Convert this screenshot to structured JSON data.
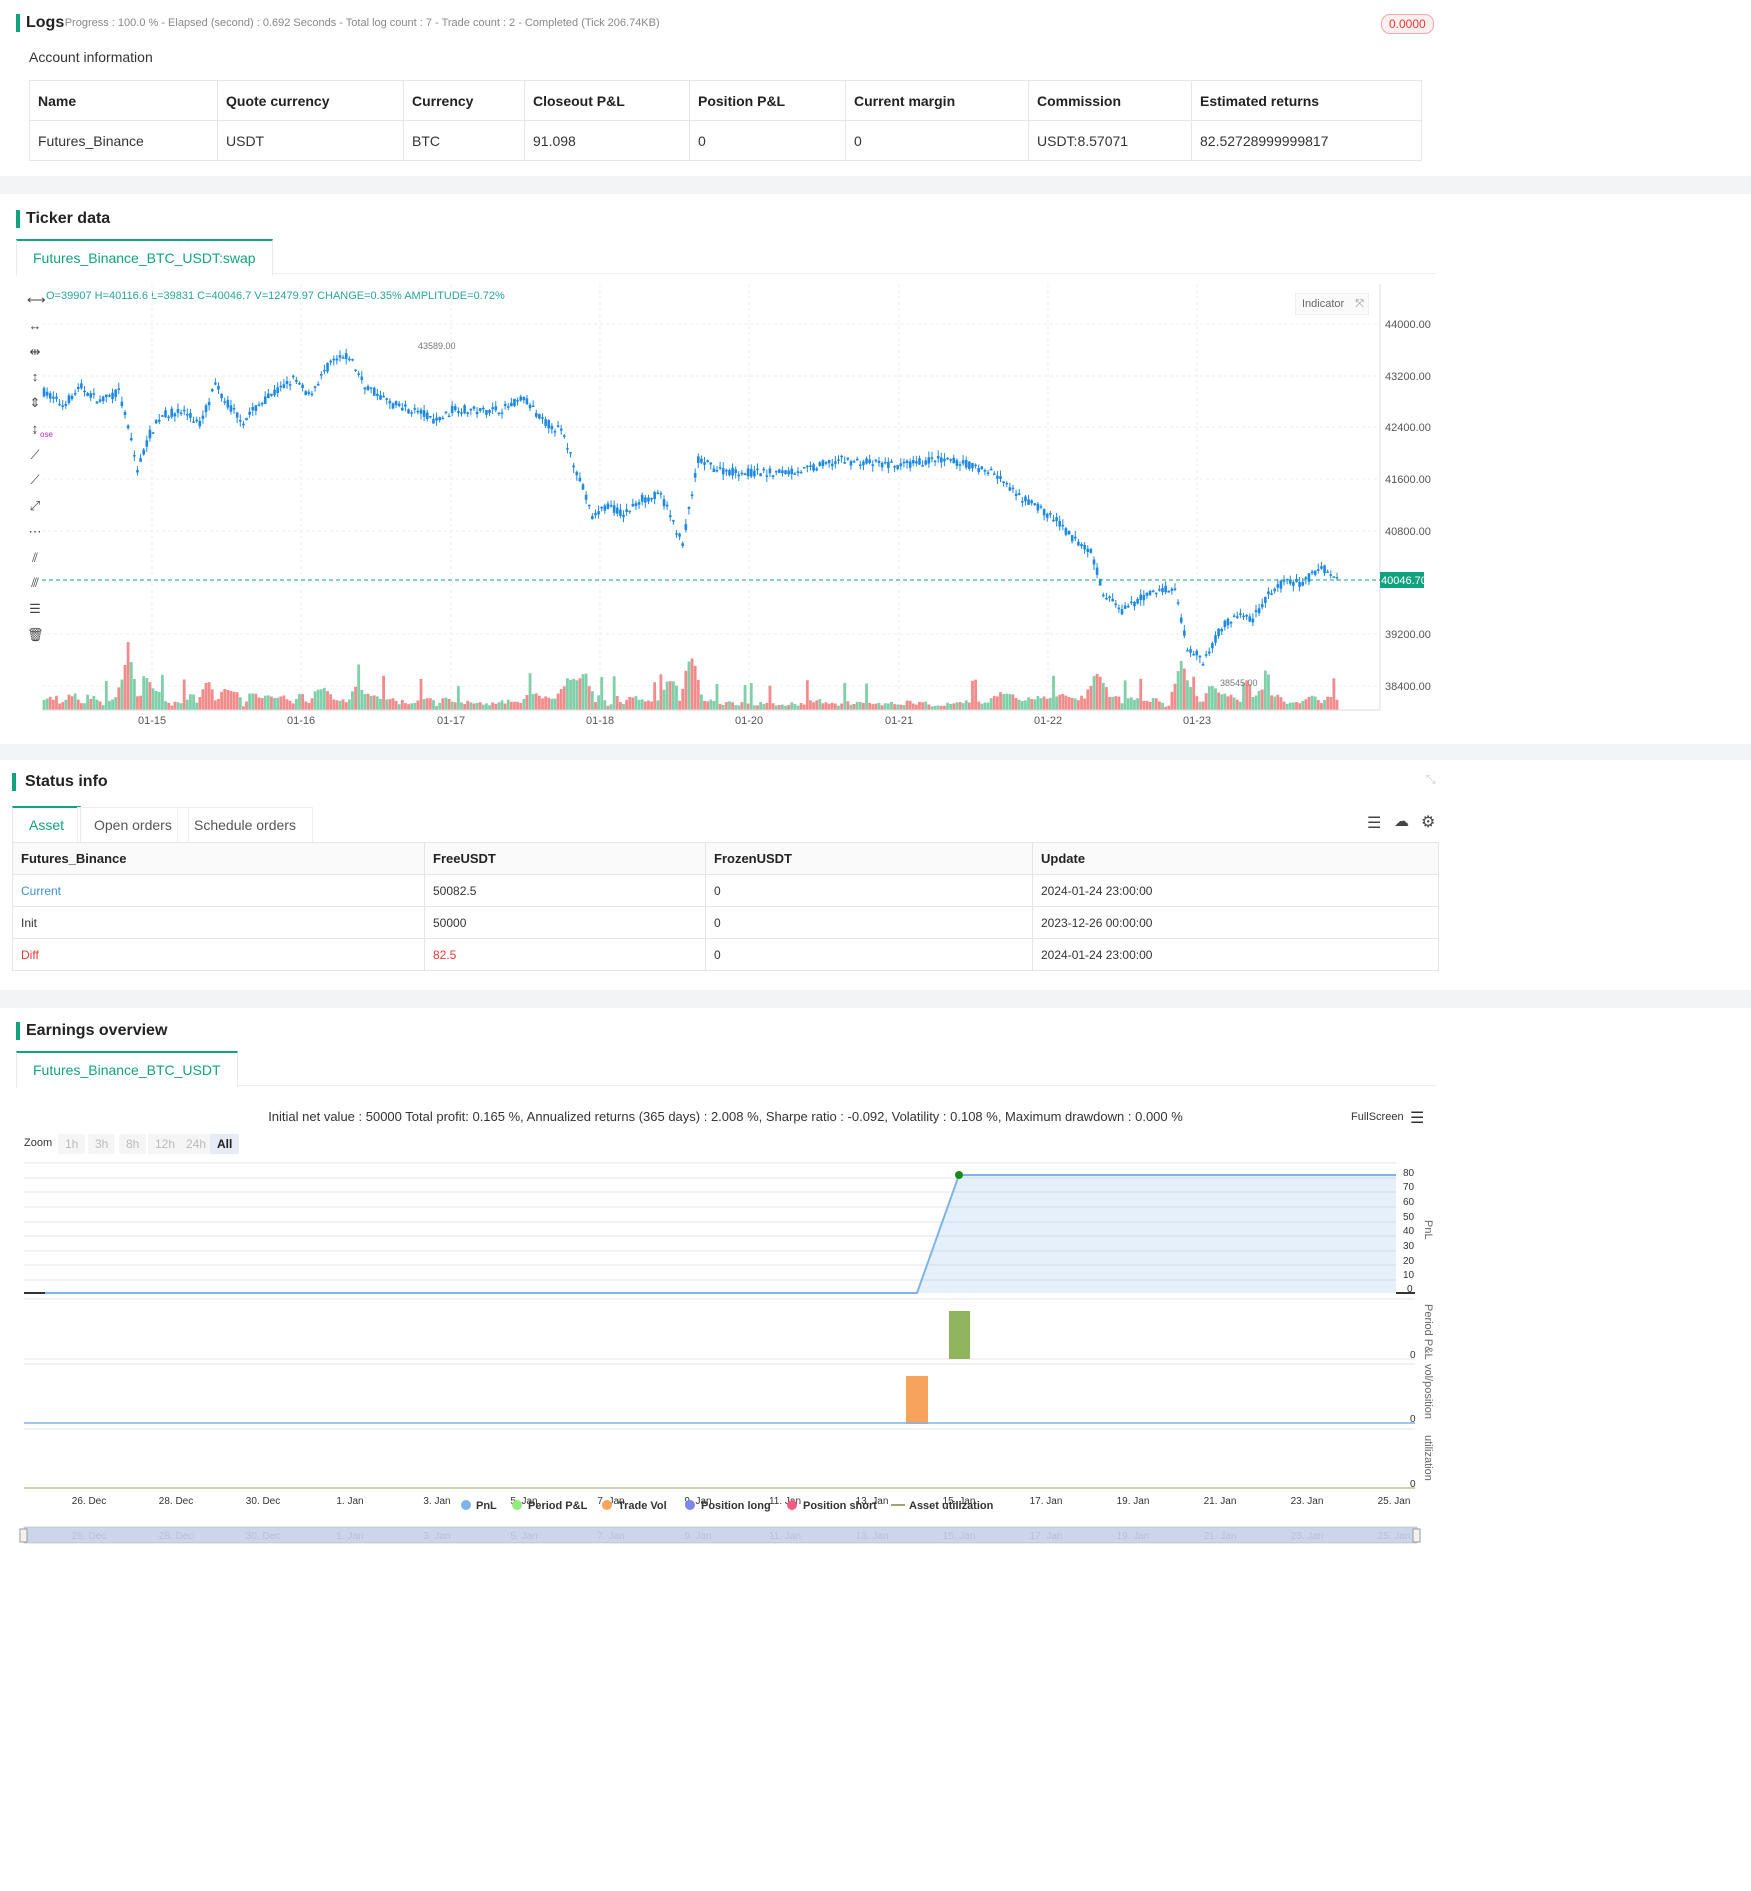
{
  "logs": {
    "title": "Logs",
    "status": "- Progress : 100.0 % - Elapsed (second) : 0.692  Seconds - Total log count : 7 - Trade count : 2 - Completed (Tick 206.74KB)",
    "badge": "0.0000",
    "account_title": "Account information",
    "headers": [
      "Name",
      "Quote currency",
      "Currency",
      "Closeout P&L",
      "Position P&L",
      "Current margin",
      "Commission",
      "Estimated returns"
    ],
    "row": [
      "Futures_Binance",
      "USDT",
      "BTC",
      "91.098",
      "0",
      "0",
      "USDT:8.57071",
      "82.52728999999817"
    ]
  },
  "ticker": {
    "title": "Ticker data",
    "tab": "Futures_Binance_BTC_USDT:swap",
    "ohlc": "O=39907 H=40116.6 L=39831 C=40046.7 V=12479.97 CHANGE=0.35% AMPLITUDE=0.72%",
    "indicator_btn": "Indicator",
    "price_labels": [
      "44000.00",
      "43200.00",
      "42400.00",
      "41600.00",
      "40800.00",
      "39200.00",
      "38400.00"
    ],
    "current_price": "40046.70",
    "high_label": "43589.00",
    "low_label": "38545.00",
    "x_labels": [
      "01-15",
      "01-16",
      "01-17",
      "01-18",
      "01-20",
      "01-21",
      "01-22",
      "01-23"
    ],
    "marker_text": "ose"
  },
  "status": {
    "title": "Status info",
    "tabs": [
      "Asset",
      "Open orders",
      "Schedule orders"
    ],
    "headers": [
      "Futures_Binance",
      "FreeUSDT",
      "FrozenUSDT",
      "Update"
    ],
    "rows": [
      [
        "Current",
        "50082.5",
        "0",
        "2024-01-24 23:00:00"
      ],
      [
        "Init",
        "50000",
        "0",
        "2023-12-26 00:00:00"
      ],
      [
        "Diff",
        "82.5",
        "0",
        "2024-01-24 23:00:00"
      ]
    ]
  },
  "earnings": {
    "title": "Earnings overview",
    "tab": "Futures_Binance_BTC_USDT",
    "summary": "Initial net value : 50000 Total profit: 0.165 %, Annualized returns (365 days) : 2.008 %, Sharpe ratio : -0.092, Volatility : 0.108 %, Maximum drawdown : 0.000 %",
    "fullscreen": "FullScreen",
    "zoom_label": "Zoom",
    "zoom_buttons": [
      "1h",
      "3h",
      "8h",
      "12h",
      "24h",
      "All"
    ],
    "pnl_ticks": [
      "80",
      "70",
      "60",
      "50",
      "40",
      "30",
      "20",
      "10",
      "0"
    ],
    "axis_titles": [
      "PnL",
      "Period P&L",
      "vol/position",
      "utilization"
    ],
    "zero_labels": [
      "0",
      "0",
      "0"
    ],
    "x_labels": [
      "26. Dec",
      "28. Dec",
      "30. Dec",
      "1. Jan",
      "3. Jan",
      "5. Jan",
      "7. Jan",
      "9. Jan",
      "11. Jan",
      "13. Jan",
      "15. Jan",
      "17. Jan",
      "19. Jan",
      "21. Jan",
      "23. Jan",
      "25. Jan"
    ],
    "legend": [
      "PnL",
      "Period P&L",
      "Trade Vol",
      "Position long",
      "Position short",
      "Asset utilization"
    ],
    "colors": {
      "accent": "#11a37f",
      "up": "#26a69a",
      "down": "#1e88e5",
      "vol_up": "#7fcfa9",
      "vol_down": "#f28b8b",
      "pnl_line": "#7cb5ec",
      "period_bar": "#90b55e",
      "trade_vol": "#f7a35c"
    }
  }
}
